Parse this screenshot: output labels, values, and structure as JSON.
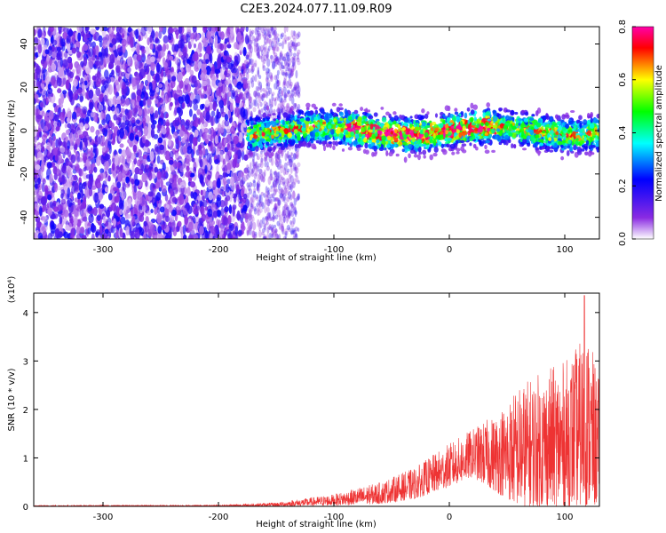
{
  "title": "C2E3.2024.077.11.09.R09",
  "chart_data": [
    {
      "type": "heatmap",
      "xlabel": "Height of straight line (km)",
      "ylabel": "Frequency (Hz)",
      "xlim": [
        -360,
        130
      ],
      "ylim": [
        -50,
        48
      ],
      "xticks": [
        -300,
        -200,
        -100,
        0,
        100
      ],
      "yticks": [
        -40,
        -20,
        0,
        20,
        40
      ],
      "colorbar": {
        "label": "Normalized spectral amplitude",
        "range": [
          0.0,
          0.8
        ],
        "ticks": [
          "0.0",
          "0.2",
          "0.4",
          "0.6",
          "0.8"
        ],
        "colormap": [
          "#ffffff",
          "#8a2be2",
          "#0000ff",
          "#00ffff",
          "#00ff00",
          "#ffff00",
          "#ff0000",
          "#ff00aa"
        ]
      },
      "description_regions": [
        {
          "x_range": [
            -360,
            -175
          ],
          "freq_range": [
            -50,
            48
          ],
          "level": 0.15
        },
        {
          "x_range": [
            -175,
            130
          ],
          "freq_center": 0,
          "freq_halfwidth": 8,
          "level": 0.45
        }
      ],
      "grid": false
    },
    {
      "type": "line",
      "xlabel": "Height of straight line (km)",
      "ylabel": "SNR (10 * v/v)",
      "yscale_label": "(x10⁴)",
      "xlim": [
        -360,
        130
      ],
      "ylim": [
        0,
        4.4
      ],
      "xticks": [
        -300,
        -200,
        -100,
        0,
        100
      ],
      "yticks": [
        0,
        1,
        2,
        3,
        4
      ],
      "series_color": "#ee3333",
      "envelope": {
        "x": [
          -360,
          -200,
          -150,
          -100,
          -60,
          -30,
          0,
          20,
          40,
          60,
          80,
          100,
          120,
          130
        ],
        "upper": [
          0.02,
          0.03,
          0.08,
          0.25,
          0.5,
          0.8,
          1.3,
          1.6,
          1.9,
          2.5,
          2.8,
          3.0,
          3.6,
          2.6
        ],
        "lower": [
          0.0,
          0.0,
          0.0,
          0.02,
          0.05,
          0.15,
          0.4,
          0.6,
          0.3,
          0.0,
          0.0,
          0.0,
          0.0,
          0.0
        ]
      },
      "peak": {
        "x": 117,
        "y": 4.35
      },
      "grid": false
    }
  ]
}
